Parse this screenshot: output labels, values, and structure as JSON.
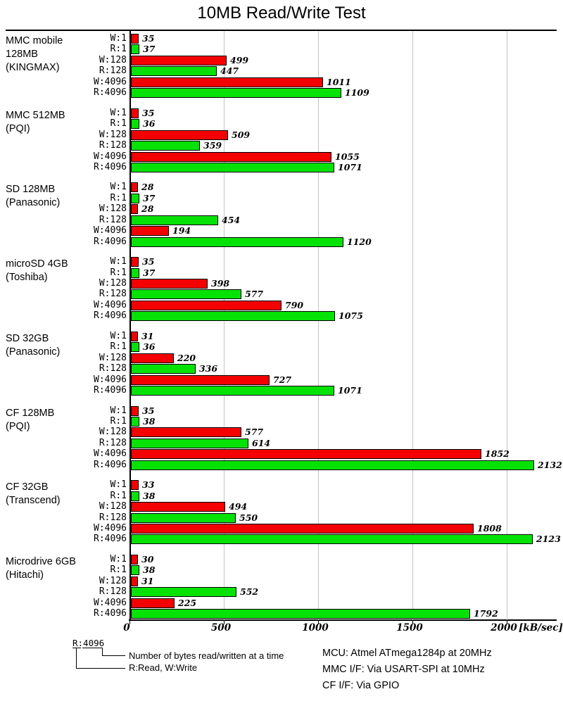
{
  "title": "10MB Read/Write Test",
  "chart_data": {
    "type": "bar",
    "orientation": "horizontal",
    "title": "10MB Read/Write Test",
    "xlabel": "[kB/sec]",
    "unit_label": "[kB/sec]",
    "xlim": [
      0,
      2270
    ],
    "x_ticks": [
      0,
      500,
      1000,
      1500,
      2000
    ],
    "grid": true,
    "row_labels": [
      "W:1",
      "R:1",
      "W:128",
      "R:128",
      "W:4096",
      "R:4096"
    ],
    "series_colors": {
      "write": "#f40000",
      "read": "#06e206"
    },
    "groups": [
      {
        "device": [
          "MMC mobile",
          "128MB",
          "(KINGMAX)"
        ],
        "values": [
          35,
          37,
          499,
          447,
          1011,
          1109
        ]
      },
      {
        "device": [
          "MMC 512MB",
          "(PQI)"
        ],
        "values": [
          35,
          36,
          509,
          359,
          1055,
          1071
        ]
      },
      {
        "device": [
          "SD 128MB",
          "(Panasonic)"
        ],
        "values": [
          28,
          37,
          28,
          454,
          194,
          1120
        ]
      },
      {
        "device": [
          "microSD 4GB",
          "(Toshiba)"
        ],
        "values": [
          35,
          37,
          398,
          577,
          790,
          1075
        ]
      },
      {
        "device": [
          "SD 32GB",
          "(Panasonic)"
        ],
        "values": [
          31,
          36,
          220,
          336,
          727,
          1071
        ]
      },
      {
        "device": [
          "CF 128MB",
          "(PQI)"
        ],
        "values": [
          35,
          38,
          577,
          614,
          1852,
          2132
        ]
      },
      {
        "device": [
          "CF 32GB",
          "(Transcend)"
        ],
        "values": [
          33,
          38,
          494,
          550,
          1808,
          2123
        ]
      },
      {
        "device": [
          "Microdrive 6GB",
          "(Hitachi)"
        ],
        "values": [
          30,
          38,
          31,
          552,
          225,
          1792
        ]
      }
    ]
  },
  "legend": {
    "sample": "R:4096",
    "bytes_note": "Number of bytes read/written at a time",
    "rw_note": "R:Read, W:Write"
  },
  "footer": {
    "lines": [
      "MCU: Atmel ATmega1284p at 20MHz",
      "MMC I/F: Via USART-SPI at 10MHz",
      "CF I/F: Via GPIO"
    ]
  }
}
